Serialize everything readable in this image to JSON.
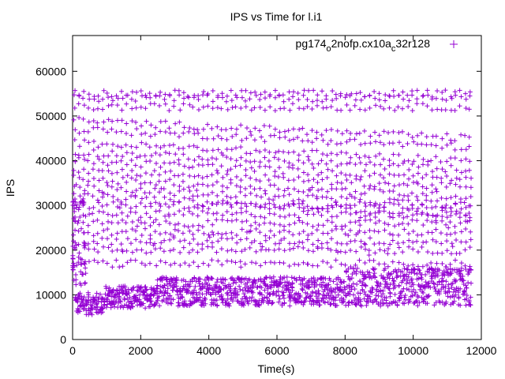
{
  "chart_data": {
    "type": "scatter",
    "title": "IPS vs Time for l.i1",
    "xlabel": "Time(s)",
    "ylabel": "IPS",
    "xlim": [
      0,
      12000
    ],
    "ylim": [
      0,
      68000
    ],
    "xticks": [
      0,
      2000,
      4000,
      6000,
      8000,
      10000,
      12000
    ],
    "yticks": [
      0,
      10000,
      20000,
      30000,
      40000,
      50000,
      60000
    ],
    "legend_position": "top-right",
    "series": [
      {
        "name_parts": [
          "pg174",
          "o",
          "2nofp.cx10a",
          "c",
          "32r128"
        ],
        "color": "#9400d3",
        "marker": "plus",
        "x_range": [
          0,
          11700
        ],
        "band_dense": {
          "ranges": [
            [
              8000,
              13500
            ],
            [
              9000,
              15000
            ]
          ],
          "note": "dense band, y approx 6000-14000 across all time"
        },
        "band_levels": [
          17000,
          20000,
          22000,
          24000,
          26000,
          28000,
          30000,
          32000,
          34000,
          36000,
          38000,
          40000,
          42000,
          44000,
          47000,
          49000,
          52000,
          54000,
          55000
        ],
        "upper_cap": 55500
      }
    ]
  }
}
